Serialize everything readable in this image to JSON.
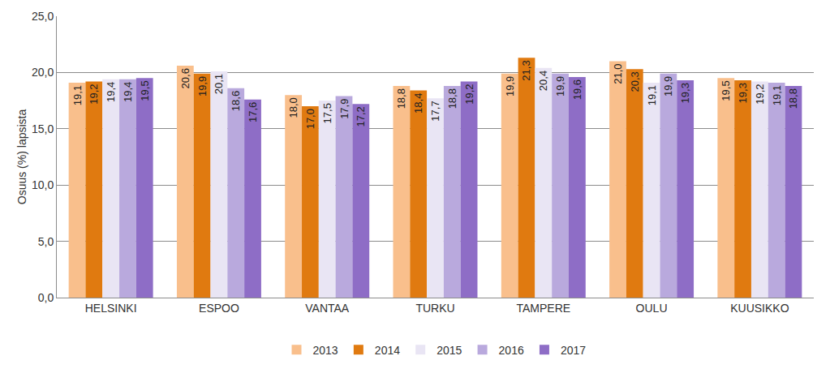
{
  "chart_data": {
    "type": "bar",
    "y_label": "Osuus (%) lapsista",
    "categories": [
      "HELSINKI",
      "ESPOO",
      "VANTAA",
      "TURKU",
      "TAMPERE",
      "OULU",
      "KUUSIKKO"
    ],
    "series": [
      {
        "name": "2013",
        "color": "#f9bf8c",
        "values": [
          19.1,
          20.6,
          18.0,
          18.8,
          19.9,
          21.0,
          19.5
        ],
        "value_labels": [
          "19,1",
          "20,6",
          "18,0",
          "18,8",
          "19,9",
          "21,0",
          "19,5"
        ]
      },
      {
        "name": "2014",
        "color": "#e07a10",
        "values": [
          19.2,
          19.9,
          17.0,
          18.4,
          21.3,
          20.3,
          19.3
        ],
        "value_labels": [
          "19,2",
          "19,9",
          "17,0",
          "18,4",
          "21,3",
          "20,3",
          "19,3"
        ]
      },
      {
        "name": "2015",
        "color": "#e9e5f4",
        "values": [
          19.4,
          20.1,
          17.5,
          17.7,
          20.4,
          19.1,
          19.2
        ],
        "value_labels": [
          "19,4",
          "20,1",
          "17,5",
          "17,7",
          "20,4",
          "19,1",
          "19,2"
        ]
      },
      {
        "name": "2016",
        "color": "#b9a9dd",
        "values": [
          19.4,
          18.6,
          17.9,
          18.8,
          19.9,
          19.9,
          19.1
        ],
        "value_labels": [
          "19,4",
          "18,6",
          "17,9",
          "18,8",
          "19,9",
          "19,9",
          "19,1"
        ]
      },
      {
        "name": "2017",
        "color": "#8e6dc6",
        "values": [
          19.5,
          17.6,
          17.2,
          19.2,
          19.6,
          19.3,
          18.8
        ],
        "value_labels": [
          "19,5",
          "17,6",
          "17,2",
          "19,2",
          "19,6",
          "19,3",
          "18,8"
        ]
      }
    ],
    "ylim": [
      0,
      25
    ],
    "yticks": [
      {
        "value": 0,
        "label": "0,0"
      },
      {
        "value": 5,
        "label": "5,0"
      },
      {
        "value": 10,
        "label": "10,0"
      },
      {
        "value": 15,
        "label": "15,0"
      },
      {
        "value": 20,
        "label": "20,0"
      },
      {
        "value": 25,
        "label": "25,0"
      }
    ],
    "grid": true,
    "legend": "bottom",
    "data_labels": true
  }
}
